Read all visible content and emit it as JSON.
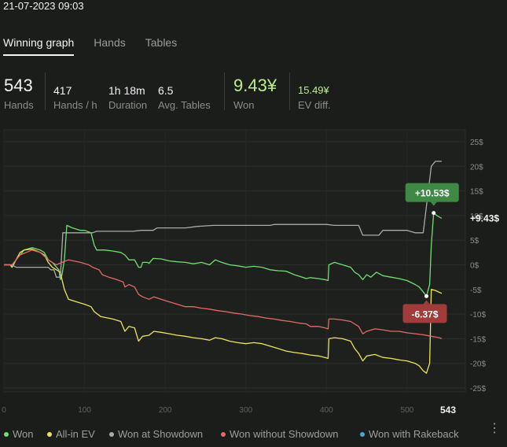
{
  "header": {
    "datetime": "21-07-2023 09:03"
  },
  "tabs": [
    {
      "label": "Winning graph",
      "active": true
    },
    {
      "label": "Hands",
      "active": false
    },
    {
      "label": "Tables",
      "active": false
    }
  ],
  "stats": {
    "hands": {
      "value": "543",
      "label": "Hands"
    },
    "hands_per_hour": {
      "value": "417",
      "label": "Hands / h"
    },
    "duration": {
      "value": "1h 18m",
      "label": "Duration"
    },
    "avg_tables": {
      "value": "6.5",
      "label": "Avg. Tables"
    },
    "won": {
      "value": "9.43¥",
      "label": "Won"
    },
    "ev_diff": {
      "value": "15.49¥",
      "label": "EV diff."
    }
  },
  "colors": {
    "won": "#6fe06f",
    "allin_ev": "#ede35a",
    "showdown": "#a9acaa",
    "no_showdown": "#e56a63",
    "rakeback": "#4aa6e0",
    "badge_green": "#3e8a45",
    "badge_red": "#a13c3a"
  },
  "chart_data": {
    "type": "line",
    "x_ticks": [
      "0",
      "100",
      "200",
      "300",
      "400",
      "500"
    ],
    "x_end_label": "543",
    "xlim": [
      0,
      543
    ],
    "ylim": [
      -25,
      25
    ],
    "y_ticks": [
      "25$",
      "20$",
      "15$",
      "10$",
      "5$",
      "0$",
      "-5$",
      "-10$",
      "-15$",
      "-20$",
      "-25$"
    ],
    "grid": true,
    "annotations": {
      "max_label": "+10.53$",
      "min_label": "-6.37$",
      "end_label": "+9.43$"
    },
    "series": [
      {
        "name": "Won",
        "color_key": "won",
        "points": [
          [
            0,
            0
          ],
          [
            8,
            0
          ],
          [
            10,
            -0.5
          ],
          [
            15,
            1
          ],
          [
            20,
            2
          ],
          [
            25,
            3
          ],
          [
            35,
            3.5
          ],
          [
            45,
            3
          ],
          [
            50,
            2.5
          ],
          [
            55,
            1
          ],
          [
            60,
            0.5
          ],
          [
            68,
            -1
          ],
          [
            70,
            -3
          ],
          [
            72,
            -2
          ],
          [
            75,
            1
          ],
          [
            78,
            8
          ],
          [
            85,
            7.5
          ],
          [
            95,
            7
          ],
          [
            100,
            7
          ],
          [
            108,
            6.5
          ],
          [
            112,
            4
          ],
          [
            115,
            3
          ],
          [
            125,
            3
          ],
          [
            135,
            2.8
          ],
          [
            145,
            2.5
          ],
          [
            150,
            2
          ],
          [
            155,
            1
          ],
          [
            162,
            1
          ],
          [
            167,
            -0.5
          ],
          [
            170,
            -0.5
          ],
          [
            172,
            0.5
          ],
          [
            178,
            0.5
          ],
          [
            180,
            0.3
          ],
          [
            185,
            1.3
          ],
          [
            195,
            1.2
          ],
          [
            205,
            0.8
          ],
          [
            215,
            0.6
          ],
          [
            225,
            0.5
          ],
          [
            235,
            0.2
          ],
          [
            245,
            0.5
          ],
          [
            255,
            0
          ],
          [
            262,
            1
          ],
          [
            270,
            0.5
          ],
          [
            280,
            0
          ],
          [
            290,
            -0.2
          ],
          [
            300,
            -0.5
          ],
          [
            310,
            -0.3
          ],
          [
            320,
            -0.5
          ],
          [
            330,
            -1
          ],
          [
            340,
            -1.2
          ],
          [
            350,
            -1.3
          ],
          [
            360,
            -2
          ],
          [
            370,
            -2.5
          ],
          [
            375,
            -2.8
          ],
          [
            380,
            -2.6
          ],
          [
            390,
            -2.8
          ],
          [
            398,
            -3
          ],
          [
            402,
            -3.2
          ],
          [
            403,
            0
          ],
          [
            410,
            0.5
          ],
          [
            420,
            0
          ],
          [
            430,
            -0.5
          ],
          [
            435,
            -1.5
          ],
          [
            440,
            -2
          ],
          [
            445,
            -3
          ],
          [
            450,
            -2
          ],
          [
            455,
            -2.5
          ],
          [
            462,
            -1.5
          ],
          [
            470,
            -2.2
          ],
          [
            480,
            -2.5
          ],
          [
            490,
            -2.8
          ],
          [
            500,
            -3.2
          ],
          [
            510,
            -4
          ],
          [
            515,
            -4.5
          ],
          [
            520,
            -5.5
          ],
          [
            524,
            -6.37
          ],
          [
            528,
            -4
          ],
          [
            530,
            4
          ],
          [
            533,
            10.53
          ],
          [
            537,
            10
          ],
          [
            543,
            9.43
          ]
        ]
      },
      {
        "name": "All-in EV",
        "color_key": "allin_ev",
        "points": [
          [
            0,
            0
          ],
          [
            8,
            0
          ],
          [
            10,
            -0.5
          ],
          [
            15,
            1
          ],
          [
            20,
            2.5
          ],
          [
            25,
            3
          ],
          [
            35,
            3.2
          ],
          [
            45,
            2.5
          ],
          [
            50,
            2
          ],
          [
            55,
            0.5
          ],
          [
            60,
            -0.5
          ],
          [
            65,
            -1
          ],
          [
            70,
            -1.5
          ],
          [
            72,
            -3
          ],
          [
            75,
            -5
          ],
          [
            80,
            -7
          ],
          [
            90,
            -7.5
          ],
          [
            100,
            -8
          ],
          [
            108,
            -8.5
          ],
          [
            112,
            -9.5
          ],
          [
            120,
            -10.5
          ],
          [
            135,
            -11
          ],
          [
            145,
            -11.5
          ],
          [
            150,
            -13.5
          ],
          [
            155,
            -12.5
          ],
          [
            162,
            -12.8
          ],
          [
            167,
            -15.5
          ],
          [
            172,
            -14.5
          ],
          [
            180,
            -14.3
          ],
          [
            186,
            -13.5
          ],
          [
            195,
            -13.7
          ],
          [
            205,
            -14
          ],
          [
            215,
            -14.3
          ],
          [
            225,
            -14.5
          ],
          [
            235,
            -14.8
          ],
          [
            245,
            -15
          ],
          [
            255,
            -15.3
          ],
          [
            262,
            -14.8
          ],
          [
            270,
            -15
          ],
          [
            280,
            -15.5
          ],
          [
            290,
            -15.8
          ],
          [
            300,
            -16
          ],
          [
            310,
            -15.8
          ],
          [
            320,
            -16
          ],
          [
            330,
            -16.5
          ],
          [
            340,
            -17
          ],
          [
            350,
            -17.5
          ],
          [
            360,
            -17.8
          ],
          [
            370,
            -18
          ],
          [
            380,
            -18.3
          ],
          [
            390,
            -18.5
          ],
          [
            398,
            -18.8
          ],
          [
            402,
            -19
          ],
          [
            403,
            -15
          ],
          [
            410,
            -14.8
          ],
          [
            420,
            -15
          ],
          [
            430,
            -15.5
          ],
          [
            435,
            -17
          ],
          [
            440,
            -18
          ],
          [
            445,
            -19.5
          ],
          [
            450,
            -18.5
          ],
          [
            460,
            -18.2
          ],
          [
            470,
            -18.8
          ],
          [
            480,
            -19
          ],
          [
            490,
            -19.3
          ],
          [
            500,
            -19.5
          ],
          [
            510,
            -20
          ],
          [
            515,
            -20.5
          ],
          [
            520,
            -21.5
          ],
          [
            524,
            -22
          ],
          [
            528,
            -20
          ],
          [
            530,
            -5
          ],
          [
            535,
            -5.2
          ],
          [
            543,
            -5.8
          ]
        ]
      },
      {
        "name": "Won at Showdown",
        "color_key": "showdown",
        "points": [
          [
            0,
            0
          ],
          [
            10,
            0
          ],
          [
            15,
            -0.5
          ],
          [
            55,
            -0.5
          ],
          [
            58,
            -1
          ],
          [
            62,
            -1
          ],
          [
            65,
            -2.5
          ],
          [
            70,
            -2.5
          ],
          [
            73,
            6.5
          ],
          [
            110,
            6.5
          ],
          [
            115,
            6.8
          ],
          [
            160,
            6.8
          ],
          [
            170,
            7
          ],
          [
            185,
            7
          ],
          [
            190,
            7.5
          ],
          [
            210,
            7.5
          ],
          [
            225,
            7.5
          ],
          [
            240,
            7.8
          ],
          [
            260,
            8
          ],
          [
            300,
            8
          ],
          [
            330,
            8
          ],
          [
            335,
            8.2
          ],
          [
            380,
            8.2
          ],
          [
            400,
            8.2
          ],
          [
            410,
            8
          ],
          [
            440,
            8
          ],
          [
            445,
            6
          ],
          [
            465,
            6
          ],
          [
            470,
            7
          ],
          [
            500,
            7
          ],
          [
            510,
            6.5
          ],
          [
            520,
            6.5
          ],
          [
            530,
            20
          ],
          [
            535,
            21
          ],
          [
            543,
            21
          ]
        ]
      },
      {
        "name": "Won without Showdown",
        "color_key": "no_showdown",
        "points": [
          [
            0,
            0
          ],
          [
            10,
            0
          ],
          [
            15,
            1
          ],
          [
            20,
            2
          ],
          [
            35,
            3
          ],
          [
            45,
            2.5
          ],
          [
            55,
            1
          ],
          [
            60,
            0.5
          ],
          [
            65,
            0
          ],
          [
            72,
            0.5
          ],
          [
            80,
            1
          ],
          [
            95,
            0.5
          ],
          [
            105,
            0
          ],
          [
            110,
            -0.5
          ],
          [
            118,
            -1
          ],
          [
            122,
            -2
          ],
          [
            130,
            -2.5
          ],
          [
            140,
            -3
          ],
          [
            148,
            -3.5
          ],
          [
            150,
            -4.5
          ],
          [
            155,
            -4
          ],
          [
            162,
            -4.5
          ],
          [
            167,
            -6
          ],
          [
            172,
            -6.5
          ],
          [
            180,
            -7
          ],
          [
            186,
            -6.5
          ],
          [
            195,
            -7
          ],
          [
            205,
            -7.5
          ],
          [
            215,
            -8
          ],
          [
            225,
            -8.5
          ],
          [
            235,
            -8.5
          ],
          [
            245,
            -8.8
          ],
          [
            255,
            -9
          ],
          [
            265,
            -9.3
          ],
          [
            275,
            -9.5
          ],
          [
            285,
            -9.8
          ],
          [
            295,
            -10
          ],
          [
            305,
            -10.3
          ],
          [
            315,
            -10.5
          ],
          [
            325,
            -10.8
          ],
          [
            335,
            -11
          ],
          [
            345,
            -11.3
          ],
          [
            355,
            -11.5
          ],
          [
            365,
            -11.8
          ],
          [
            375,
            -12
          ],
          [
            380,
            -12.5
          ],
          [
            390,
            -12.5
          ],
          [
            398,
            -12.8
          ],
          [
            402,
            -13
          ],
          [
            403,
            -11
          ],
          [
            410,
            -11
          ],
          [
            420,
            -11.2
          ],
          [
            430,
            -11.5
          ],
          [
            440,
            -12.5
          ],
          [
            445,
            -14
          ],
          [
            450,
            -13.5
          ],
          [
            460,
            -13
          ],
          [
            470,
            -13.2
          ],
          [
            480,
            -13.5
          ],
          [
            490,
            -13.5
          ],
          [
            500,
            -13.8
          ],
          [
            510,
            -14
          ],
          [
            520,
            -14.2
          ],
          [
            530,
            -14.5
          ],
          [
            540,
            -14.8
          ],
          [
            543,
            -15
          ]
        ]
      },
      {
        "name": "Won with Rakeback",
        "color_key": "rakeback",
        "points": []
      }
    ]
  },
  "legend": [
    {
      "label": "Won",
      "color_key": "won"
    },
    {
      "label": "All-in EV",
      "color_key": "allin_ev"
    },
    {
      "label": "Won at Showdown",
      "color_key": "showdown"
    },
    {
      "label": "Won without Showdown",
      "color_key": "no_showdown"
    },
    {
      "label": "Won with Rakeback",
      "color_key": "rakeback"
    }
  ],
  "menu": {
    "icon": "more-vertical-icon",
    "glyph": "⋮"
  }
}
